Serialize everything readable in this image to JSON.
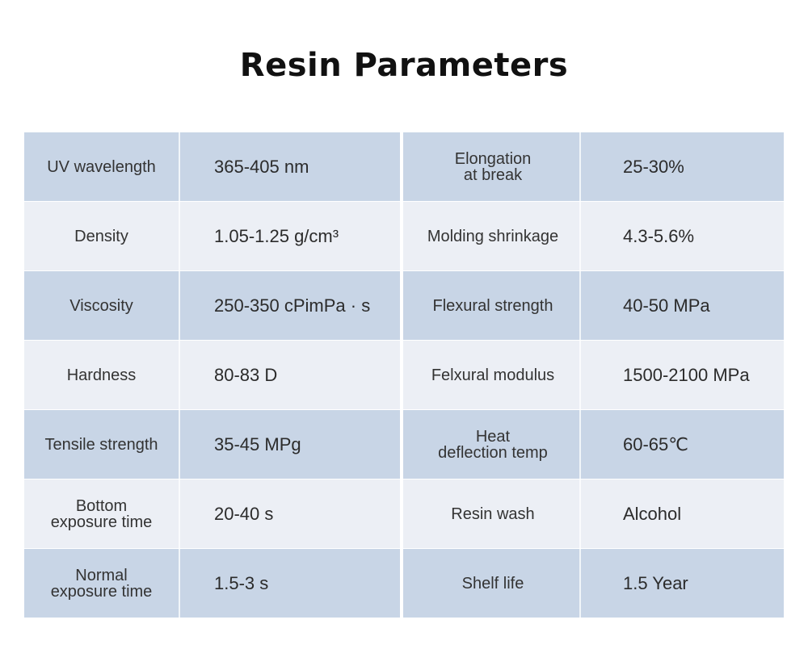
{
  "title": "Resin Parameters",
  "rows": [
    {
      "left_label": "UV wavelength",
      "left_value": "365-405 nm",
      "right_label": "Elongation\nat break",
      "right_value": "25-30%"
    },
    {
      "left_label": "Density",
      "left_value": "1.05-1.25 g/cm³",
      "right_label": "Molding shrinkage",
      "right_value": "4.3-5.6%"
    },
    {
      "left_label": "Viscosity",
      "left_value": "250-350 cPimPa · s",
      "right_label": "Flexural strength",
      "right_value": "40-50 MPa"
    },
    {
      "left_label": "Hardness",
      "left_value": "80-83 D",
      "right_label": "Felxural modulus",
      "right_value": "1500-2100 MPa"
    },
    {
      "left_label": "Tensile strength",
      "left_value": "35-45 MPg",
      "right_label": "Heat\ndeflection temp",
      "right_value": "60-65℃"
    },
    {
      "left_label": "Bottom\nexposure time",
      "left_value": "20-40 s",
      "right_label": "Resin wash",
      "right_value": "Alcohol"
    },
    {
      "left_label": "Normal\nexposure time",
      "left_value": "1.5-3 s",
      "right_label": "Shelf life",
      "right_value": "1.5 Year"
    }
  ]
}
